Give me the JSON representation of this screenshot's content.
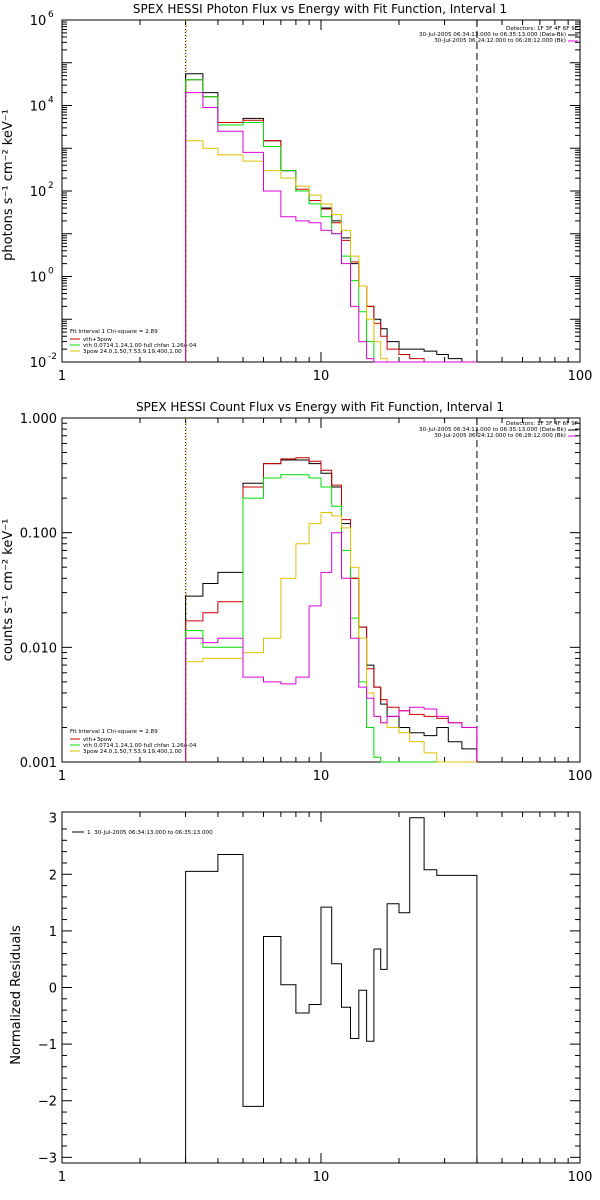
{
  "chart_data": [
    {
      "type": "line",
      "title": "SPEX HESSI Photon Flux vs Energy with Fit Function, Interval 1",
      "ylabel": "photons s⁻¹ cm⁻² keV⁻¹",
      "x_scale": "log",
      "y_scale": "log",
      "xlim": [
        1,
        100
      ],
      "ylim": [
        0.01,
        1000000
      ],
      "x_ticks": [
        {
          "v": 1,
          "label": "1"
        },
        {
          "v": 10,
          "label": "10"
        },
        {
          "v": 100,
          "label": "100"
        }
      ],
      "y_ticks": [
        {
          "v": 0.01,
          "base": "10",
          "exp": "-2"
        },
        {
          "v": 1,
          "base": "10",
          "exp": "0"
        },
        {
          "v": 100,
          "base": "10",
          "exp": "2"
        },
        {
          "v": 10000,
          "base": "10",
          "exp": "4"
        },
        {
          "v": 1000000,
          "base": "10",
          "exp": "6"
        }
      ],
      "vlines": [
        {
          "x": 3.0,
          "style": "dotted"
        },
        {
          "x": 40.0,
          "style": "dashed"
        }
      ],
      "orange_vline": 3.0,
      "legend_top": [
        "Detectors: 1F 3F 4F 6F 9F",
        "30-Jul-2005 06:34:13.000 to 06:35:13.000 (Data-Bk)",
        "30-Jul-2005 06:24:12.000 to 06:28:12.000 (Bk)"
      ],
      "legend_bottom": [
        "Fit Interval 1    Chi-square = 2.89",
        "vth+3pow",
        "vth 0.0714,1.24,1.00  full chfan 1.26e-04",
        "3pow 24.0,1.50,7.53,9.19,400,1.00"
      ],
      "edges": [
        3,
        3.5,
        4,
        5,
        6,
        7,
        8,
        9,
        10,
        11,
        12,
        13,
        14,
        15,
        16,
        17,
        18,
        20,
        22,
        25,
        28,
        31,
        35,
        40
      ],
      "series": [
        {
          "name": "Data-Bk",
          "color": "#000000",
          "values": [
            55000,
            20000,
            4000,
            5000,
            1500,
            300,
            100,
            60,
            40,
            20,
            8,
            2,
            0.6,
            0.2,
            0.1,
            0.06,
            0.03,
            0.02,
            0.02,
            0.018,
            0.015,
            0.012,
            0.01
          ]
        },
        {
          "name": "vth+3pow",
          "color": "#cc0000",
          "values": [
            40000,
            16000,
            4000,
            4500,
            1500,
            300,
            110,
            60,
            38,
            18,
            7,
            2.2,
            0.6,
            0.2,
            0.08,
            0.04,
            0.02,
            0.015,
            0.012,
            0.01,
            0.01,
            0.01,
            0.01
          ]
        },
        {
          "name": "vth",
          "color": "#00dd00",
          "values": [
            40000,
            16000,
            3500,
            4000,
            1100,
            300,
            100,
            50,
            25,
            10,
            3,
            0.8,
            0.15,
            0.03,
            0.01,
            0.01,
            0.01,
            0.01,
            0.01,
            0.01,
            0.01,
            0.01,
            0.01
          ]
        },
        {
          "name": "3pow",
          "color": "#e0c000",
          "values": [
            1500,
            1000,
            700,
            500,
            300,
            200,
            130,
            80,
            50,
            28,
            12,
            3,
            0.6,
            0.1,
            0.03,
            0.012,
            0.01,
            0.01,
            0.01,
            0.01,
            0.01,
            0.01,
            0.01
          ]
        },
        {
          "name": "Bk",
          "color": "#dd00dd",
          "values": [
            20000,
            9000,
            2500,
            800,
            100,
            25,
            20,
            18,
            12,
            10,
            2,
            0.2,
            0.03,
            0.012,
            0.01,
            0.01,
            0.01,
            0.01,
            0.01,
            0.01,
            0.01,
            0.01,
            0.01
          ]
        }
      ]
    },
    {
      "type": "line",
      "title": "SPEX HESSI Count Flux vs Energy with Fit Function, Interval 1",
      "ylabel": "counts s⁻¹ cm⁻² keV⁻¹",
      "x_scale": "log",
      "y_scale": "log",
      "xlim": [
        1,
        100
      ],
      "ylim": [
        0.001,
        1.0
      ],
      "x_ticks": [
        {
          "v": 1,
          "label": "1"
        },
        {
          "v": 10,
          "label": "10"
        },
        {
          "v": 100,
          "label": "100"
        }
      ],
      "y_ticks": [
        {
          "v": 0.001,
          "label": "0.001"
        },
        {
          "v": 0.01,
          "label": "0.010"
        },
        {
          "v": 0.1,
          "label": "0.100"
        },
        {
          "v": 1.0,
          "label": "1.000"
        }
      ],
      "vlines": [
        {
          "x": 3.0,
          "style": "dotted"
        },
        {
          "x": 40.0,
          "style": "dashed"
        }
      ],
      "orange_vline": 3.0,
      "legend_top": [
        "Detectors: 1F 3F 4F 6F 9F",
        "30-Jul-2005 06:34:13.000 to 06:35:13.000 (Data-Bk)",
        "30-Jul-2005 06:24:12.000 to 06:28:12.000 (Bk)"
      ],
      "legend_bottom": [
        "Fit Interval 1    Chi-square = 2.89",
        "vth+3pow",
        "vth 0.0714,1.24,1.00  full chfan 1.26e-04",
        "3pow 24.0,1.50,7.53,9.19,400,1.00"
      ],
      "edges": [
        3,
        3.5,
        4,
        5,
        6,
        7,
        8,
        9,
        10,
        11,
        12,
        13,
        14,
        15,
        16,
        17,
        18,
        20,
        22,
        25,
        28,
        31,
        35,
        40
      ],
      "series": [
        {
          "name": "Data-Bk",
          "color": "#000000",
          "values": [
            0.028,
            0.036,
            0.045,
            0.27,
            0.4,
            0.43,
            0.43,
            0.4,
            0.33,
            0.25,
            0.12,
            0.04,
            0.015,
            0.007,
            0.0045,
            0.0032,
            0.0025,
            0.002,
            0.0018,
            0.0017,
            0.002,
            0.0015,
            0.0013
          ]
        },
        {
          "name": "vth+3pow",
          "color": "#cc0000",
          "values": [
            0.017,
            0.02,
            0.025,
            0.25,
            0.4,
            0.44,
            0.45,
            0.42,
            0.35,
            0.26,
            0.13,
            0.04,
            0.015,
            0.0065,
            0.0045,
            0.0035,
            0.003,
            0.0028,
            0.0026,
            0.0025,
            0.0024,
            0.0022,
            0.002
          ]
        },
        {
          "name": "vth",
          "color": "#00dd00",
          "values": [
            0.014,
            0.01,
            0.01,
            0.2,
            0.3,
            0.32,
            0.32,
            0.3,
            0.25,
            0.17,
            0.07,
            0.018,
            0.005,
            0.002,
            0.0011,
            0.001,
            0.001,
            0.001,
            0.001,
            0.001,
            0.001,
            0.001,
            0.001
          ]
        },
        {
          "name": "3pow",
          "color": "#e0c000",
          "values": [
            0.0075,
            0.008,
            0.008,
            0.009,
            0.012,
            0.04,
            0.08,
            0.12,
            0.15,
            0.14,
            0.11,
            0.05,
            0.012,
            0.004,
            0.0025,
            0.0022,
            0.002,
            0.0018,
            0.0015,
            0.0012,
            0.001,
            0.001,
            0.001
          ]
        },
        {
          "name": "Bk",
          "color": "#dd00dd",
          "values": [
            0.012,
            0.011,
            0.012,
            0.0055,
            0.005,
            0.0048,
            0.0055,
            0.023,
            0.045,
            0.1,
            0.04,
            0.012,
            0.0045,
            0.0036,
            0.0025,
            0.0022,
            0.0025,
            0.0028,
            0.003,
            0.0029,
            0.0025,
            0.0022,
            0.002
          ]
        }
      ]
    },
    {
      "type": "line",
      "title": "",
      "ylabel": "Normalized Residuals",
      "x_scale": "log",
      "y_scale": "linear",
      "xlim": [
        1,
        100
      ],
      "ylim": [
        -3.1,
        3.1
      ],
      "x_ticks": [
        {
          "v": 1,
          "label": "1"
        },
        {
          "v": 10,
          "label": "10"
        },
        {
          "v": 100,
          "label": "100"
        }
      ],
      "y_ticks": [
        {
          "v": -3,
          "label": "−3"
        },
        {
          "v": -2,
          "label": "−2"
        },
        {
          "v": -1,
          "label": "−1"
        },
        {
          "v": 0,
          "label": "0"
        },
        {
          "v": 1,
          "label": "1"
        },
        {
          "v": 2,
          "label": "2"
        },
        {
          "v": 3,
          "label": "3"
        }
      ],
      "vlines": [],
      "legend_top": [],
      "legend_bottom": [],
      "legend_item": "1. 30-Jul-2005 06:34:13.000 to 06:35:13.000",
      "edges": [
        3,
        3.5,
        4,
        5,
        6,
        7,
        8,
        9,
        10,
        11,
        12,
        13,
        14,
        15,
        16,
        17,
        18,
        20,
        22,
        25,
        28,
        31,
        35,
        40
      ],
      "series": [
        {
          "name": "1. 30-Jul-2005 06:34:13.000 to 06:35:13.000",
          "color": "#000000",
          "values": [
            2.05,
            2.05,
            2.35,
            -2.1,
            0.9,
            0.05,
            -0.45,
            -0.3,
            1.42,
            0.42,
            -0.35,
            -0.9,
            -0.05,
            -0.95,
            0.68,
            0.32,
            1.48,
            1.32,
            3.0,
            2.08,
            1.98,
            1.98,
            1.98
          ]
        }
      ]
    }
  ]
}
